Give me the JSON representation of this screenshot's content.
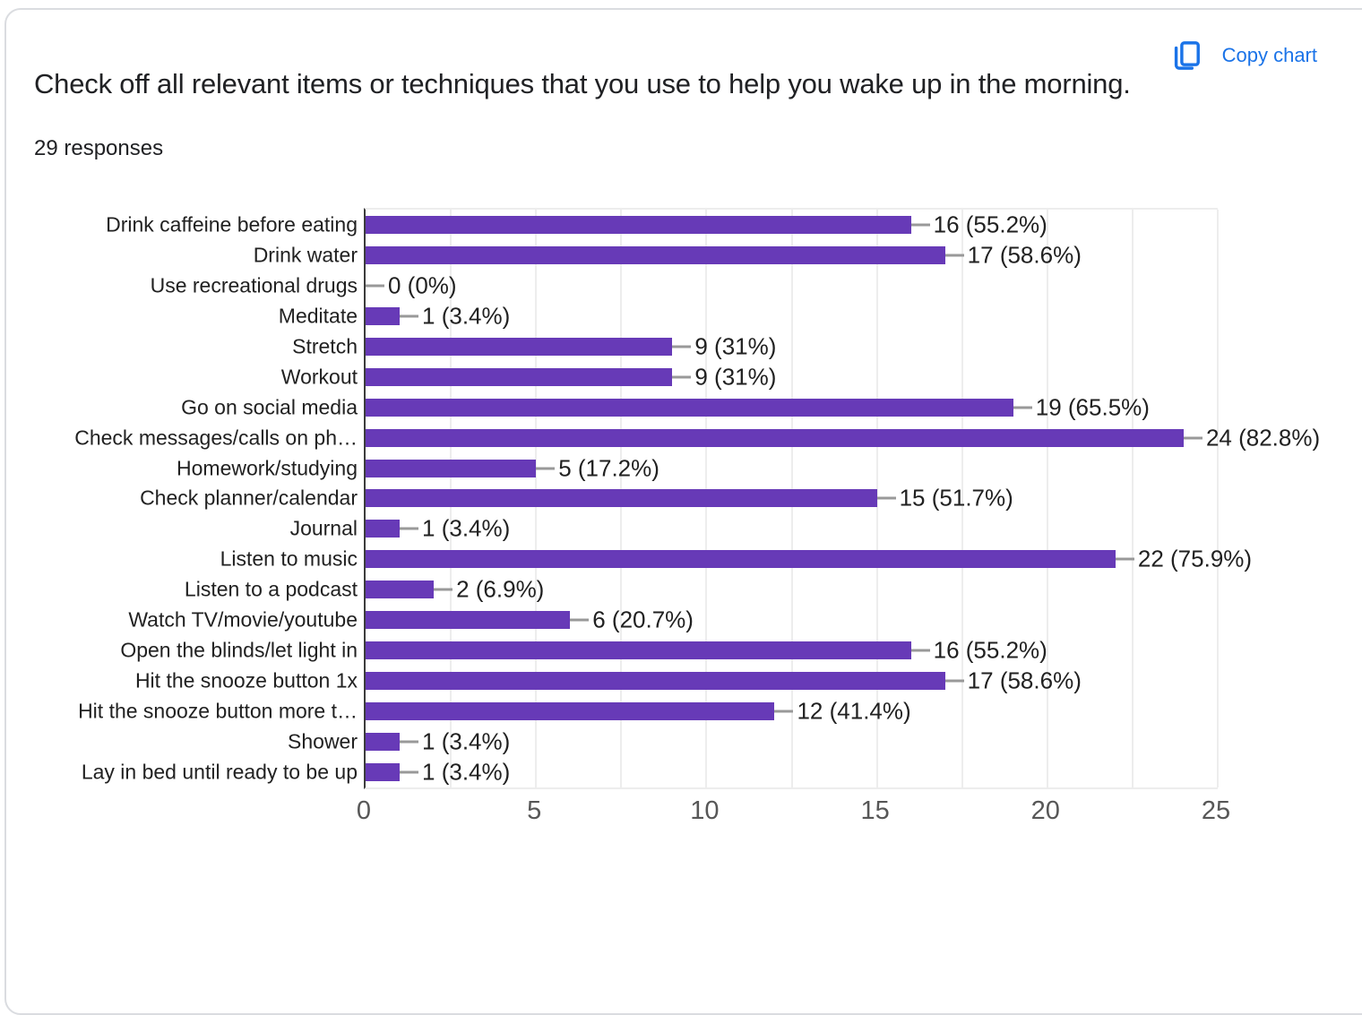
{
  "header": {
    "title": "Check off all relevant items or techniques that you use to help you wake up in the morning.",
    "responses": "29 responses",
    "copy_chart_label": "Copy chart",
    "accent_color": "#1a73e8"
  },
  "chart_data": {
    "type": "bar",
    "orientation": "horizontal",
    "title": "Check off all relevant items or techniques that you use to help you wake up in the morning.",
    "subtitle": "29 responses",
    "categories": [
      "Drink caffeine before eating",
      "Drink water",
      "Use recreational drugs",
      "Meditate",
      "Stretch",
      "Workout",
      "Go on social media",
      "Check messages/calls on ph…",
      "Homework/studying",
      "Check planner/calendar",
      "Journal",
      "Listen to music",
      "Listen to a podcast",
      "Watch TV/movie/youtube",
      "Open the blinds/let light in",
      "Hit the snooze button 1x",
      "Hit the snooze button more t…",
      "Shower",
      "Lay in bed until ready to be up"
    ],
    "values": [
      16,
      17,
      0,
      1,
      9,
      9,
      19,
      24,
      5,
      15,
      1,
      22,
      2,
      6,
      16,
      17,
      12,
      1,
      1
    ],
    "value_labels": [
      "16 (55.2%)",
      "17 (58.6%)",
      "0 (0%)",
      "1 (3.4%)",
      "9 (31%)",
      "9 (31%)",
      "19 (65.5%)",
      "24 (82.8%)",
      "5 (17.2%)",
      "15 (51.7%)",
      "1 (3.4%)",
      "22 (75.9%)",
      "2 (6.9%)",
      "6 (20.7%)",
      "16 (55.2%)",
      "17 (58.6%)",
      "12 (41.4%)",
      "1 (3.4%)",
      "1 (3.4%)"
    ],
    "xlabel": "",
    "ylabel": "",
    "xlim": [
      0,
      25
    ],
    "x_ticks": [
      0,
      5,
      10,
      15,
      20,
      25
    ],
    "grid_step": 2.5,
    "grid": true,
    "legend_position": "none",
    "bar_color": "#673ab7",
    "whisker_color": "#999999"
  }
}
